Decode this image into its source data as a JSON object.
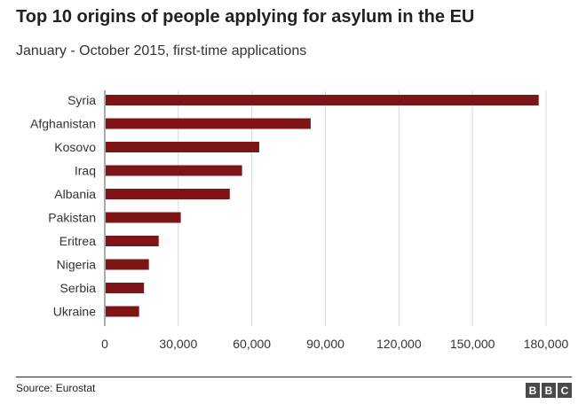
{
  "header": {
    "title": "Top 10 origins of people applying for asylum in the EU",
    "subtitle": "January - October 2015, first-time applications"
  },
  "footer": {
    "source": "Source: Eurostat",
    "logo_letters": [
      "B",
      "B",
      "C"
    ]
  },
  "colors": {
    "bar": "#7d1416",
    "grid": "#d9d9d9",
    "axis": "#555555",
    "logo": "#4a4a4a"
  },
  "chart_data": {
    "type": "bar",
    "orientation": "horizontal",
    "categories": [
      "Syria",
      "Afghanistan",
      "Kosovo",
      "Iraq",
      "Albania",
      "Pakistan",
      "Eritrea",
      "Nigeria",
      "Serbia",
      "Ukraine"
    ],
    "values": [
      177000,
      84000,
      63000,
      56000,
      51000,
      31000,
      22000,
      18000,
      16000,
      14000
    ],
    "xlim": [
      0,
      180000
    ],
    "xticks": [
      0,
      30000,
      60000,
      90000,
      120000,
      150000,
      180000
    ],
    "xtick_labels": [
      "0",
      "30,000",
      "60,000",
      "90,000",
      "120,000",
      "150,000",
      "180,000"
    ],
    "grid": true
  }
}
